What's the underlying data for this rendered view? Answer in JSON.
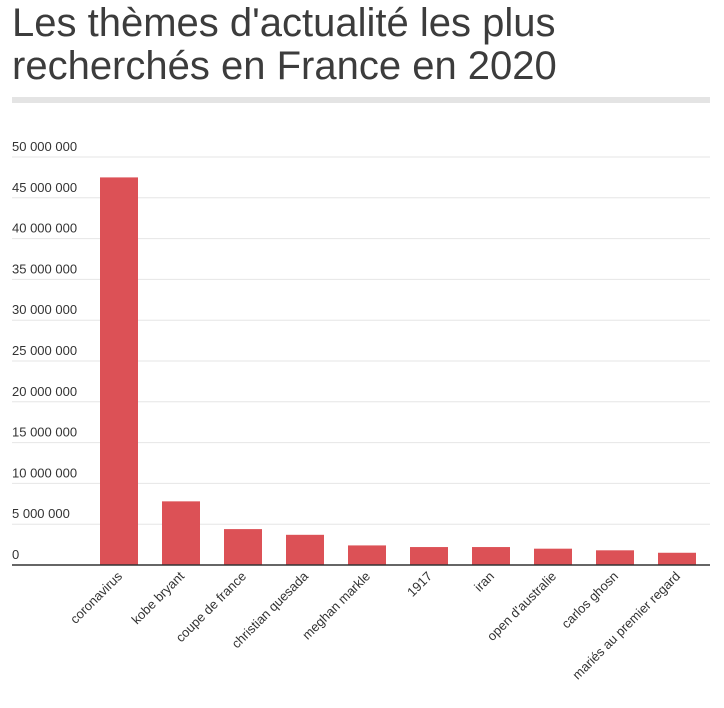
{
  "title": "Les thèmes d'actualité les plus recherchés en France en 2020",
  "colors": {
    "bar": "#dc5156",
    "grid": "#e6e6e6",
    "axis": "#333333",
    "text": "#333333"
  },
  "chart_data": {
    "type": "bar",
    "title": "Les thèmes d'actualité les plus recherchés en France en 2020",
    "xlabel": "",
    "ylabel": "",
    "ylim": [
      0,
      50000000
    ],
    "yticks": [
      0,
      5000000,
      10000000,
      15000000,
      20000000,
      25000000,
      30000000,
      35000000,
      40000000,
      45000000,
      50000000
    ],
    "ytick_labels": [
      "0",
      "5 000 000",
      "10 000 000",
      "15 000 000",
      "20 000 000",
      "25 000 000",
      "30 000 000",
      "35 000 000",
      "40 000 000",
      "45 000 000",
      "50 000 000"
    ],
    "categories": [
      "coronavirus",
      "kobe bryant",
      "coupe de france",
      "christian quesada",
      "meghan markle",
      "1917",
      "iran",
      "open d'australie",
      "carlos ghosn",
      "mariés au premier regard"
    ],
    "values": [
      47500000,
      7800000,
      4400000,
      3700000,
      2400000,
      2200000,
      2200000,
      2000000,
      1800000,
      1500000
    ],
    "grid": true,
    "legend": "none"
  }
}
